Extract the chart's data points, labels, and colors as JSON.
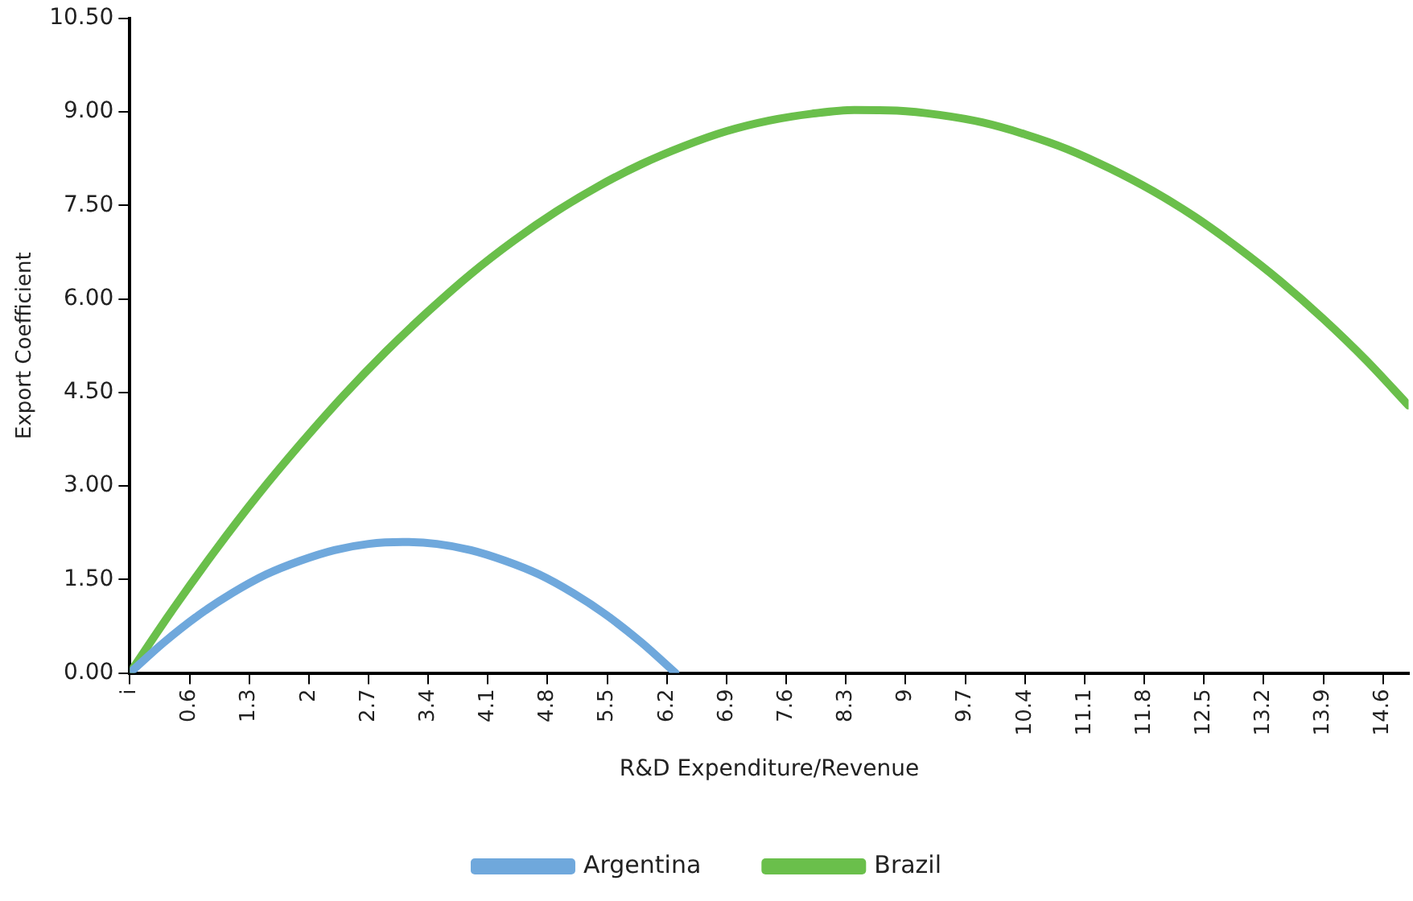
{
  "chart_data": {
    "type": "line",
    "xlabel": "R&D Expenditure/Revenue",
    "ylabel": "Export Coefficient",
    "xlim": [
      -0.1,
      14.9
    ],
    "xticks": [
      {
        "value": -0.1,
        "label": "i"
      },
      0.6,
      1.3,
      2,
      2.7,
      3.4,
      4.1,
      4.8,
      5.5,
      6.2,
      6.9,
      7.6,
      8.3,
      9,
      9.7,
      10.4,
      11.1,
      11.8,
      12.5,
      13.2,
      13.9,
      14.6
    ],
    "ylim": [
      0,
      10.5
    ],
    "yticks": [
      {
        "value": 0,
        "label": "0.00"
      },
      {
        "value": 1.5,
        "label": "1.50"
      },
      {
        "value": 3,
        "label": "3.00"
      },
      {
        "value": 4.5,
        "label": "4.50"
      },
      {
        "value": 6,
        "label": "6.00"
      },
      {
        "value": 7.5,
        "label": "7.50"
      },
      {
        "value": 9,
        "label": "9.00"
      },
      {
        "value": 10.5,
        "label": "10.50"
      }
    ],
    "grid": false,
    "legend": "bottom",
    "marker": "none",
    "line_style": "solid",
    "series": [
      {
        "name": "Argentina",
        "color": "#6fa8dc",
        "x": [
          -0.1,
          0.3,
          0.7,
          1.1,
          1.5,
          1.9,
          2.3,
          2.7,
          3.1,
          3.5,
          3.9,
          4.3,
          4.7,
          5.1,
          5.5,
          5.9,
          6.3
        ],
        "values": [
          0,
          0.49,
          0.92,
          1.28,
          1.58,
          1.8,
          1.97,
          2.07,
          2.1,
          2.07,
          1.97,
          1.8,
          1.58,
          1.28,
          0.92,
          0.49,
          0
        ]
      },
      {
        "name": "Brazil",
        "color": "#6abf4b",
        "x": [
          -0.1,
          0.4,
          0.9,
          1.4,
          1.9,
          2.4,
          2.9,
          3.4,
          3.9,
          4.4,
          4.9,
          5.4,
          5.9,
          6.4,
          6.9,
          7.4,
          7.9,
          8.4,
          8.9,
          9.4,
          9.9,
          10.4,
          10.9,
          11.4,
          11.9,
          12.4,
          12.9,
          13.4,
          13.9,
          14.4,
          14.9
        ],
        "values": [
          0,
          1.01,
          1.96,
          2.85,
          3.67,
          4.44,
          5.15,
          5.8,
          6.4,
          6.93,
          7.4,
          7.81,
          8.16,
          8.45,
          8.69,
          8.86,
          8.97,
          9.03,
          9.02,
          8.95,
          8.83,
          8.64,
          8.4,
          8.09,
          7.73,
          7.31,
          6.82,
          6.28,
          5.68,
          5.02,
          4.29
        ]
      }
    ]
  }
}
